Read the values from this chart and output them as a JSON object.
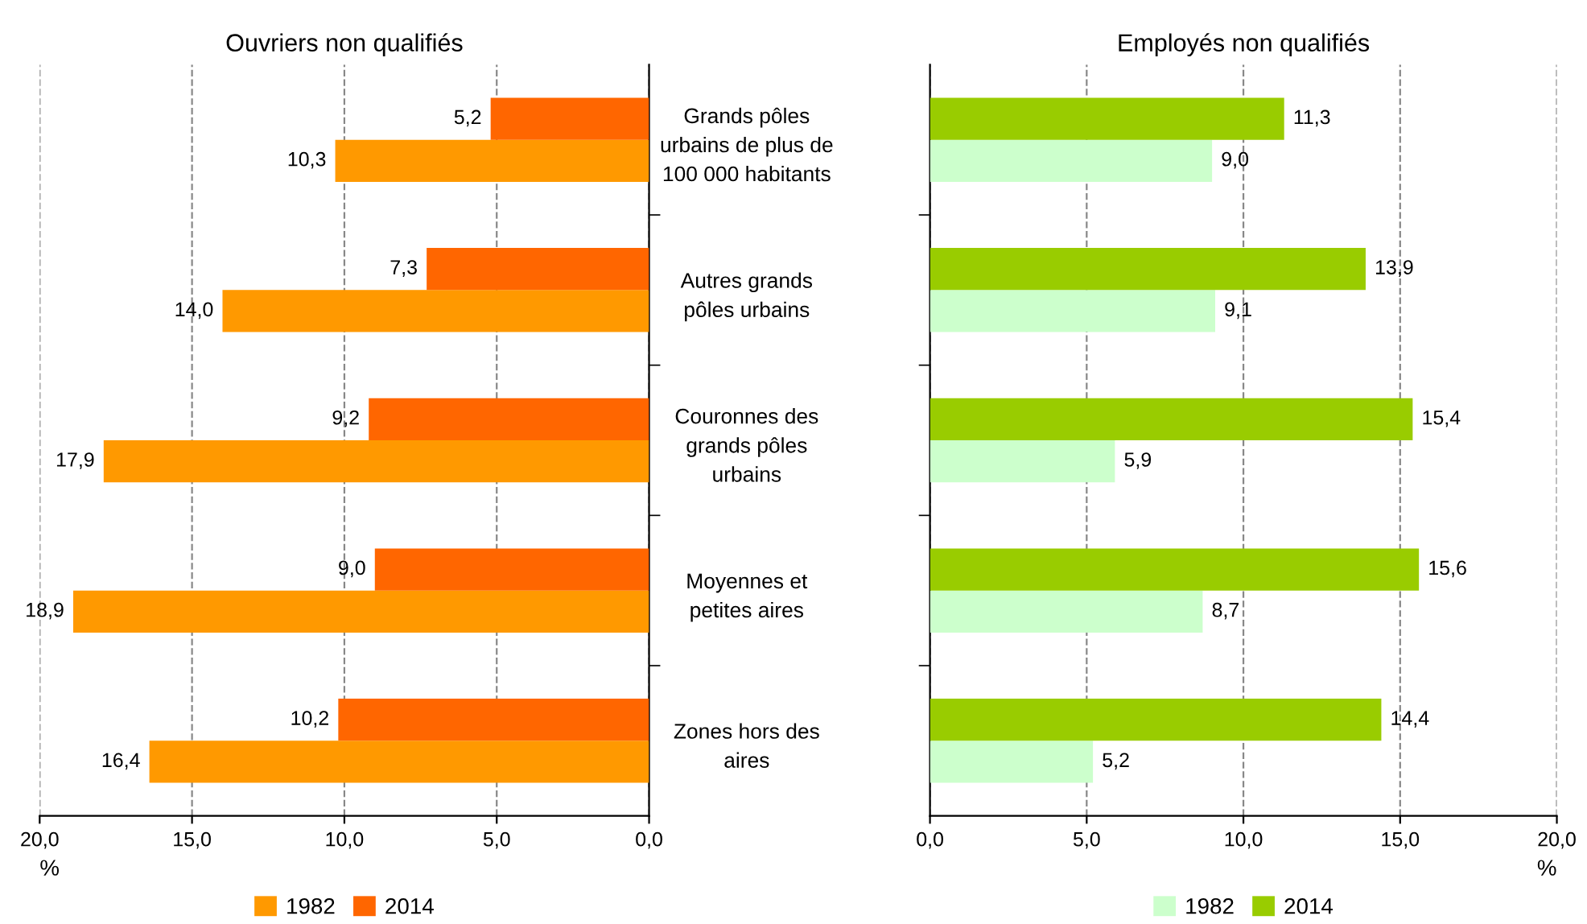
{
  "chart_data": [
    {
      "type": "bar",
      "orientation": "horizontal",
      "title": "Ouvriers non qualifiés",
      "xlabel": "%",
      "categories": [
        null,
        null,
        null,
        null,
        null
      ],
      "series": [
        {
          "name": "1982",
          "color": "#ff9900",
          "values": [
            10.3,
            14.0,
            17.9,
            18.9,
            16.4
          ],
          "value_labels": [
            "10,3",
            "14,0",
            "17,9",
            "18,9",
            "16,4"
          ]
        },
        {
          "name": "2014",
          "color": "#ff6600",
          "values": [
            5.2,
            7.3,
            9.2,
            9.0,
            10.2
          ],
          "value_labels": [
            "5,2",
            "7,3",
            "9,2",
            "9,0",
            "10,2"
          ]
        }
      ],
      "xlim": [
        20,
        0
      ],
      "xticks": [
        {
          "value": 20,
          "label": "20,0"
        },
        {
          "value": 15,
          "label": "15,0"
        },
        {
          "value": 10,
          "label": "10,0"
        },
        {
          "value": 5,
          "label": "5,0"
        },
        {
          "value": 0,
          "label": "0,0"
        }
      ],
      "grid": "x",
      "legend": "bottom",
      "tick_labels": "x"
    },
    {
      "type": "bar",
      "orientation": "horizontal",
      "title": "Employés non qualifiés",
      "xlabel": "%",
      "categories": [
        "Grands pôles\nurbains de plus de\n100 000 habitants",
        "Autres grands\npôles urbains",
        "Couronnes des\ngrands pôles\nurbains",
        "Moyennes et\npetites aires",
        "Zones hors des\naires"
      ],
      "series": [
        {
          "name": "1982",
          "color": "#ccffcc",
          "values": [
            9.0,
            9.1,
            5.9,
            8.7,
            5.2
          ],
          "value_labels": [
            "9,0",
            "9,1",
            "5,9",
            "8,7",
            "5,2"
          ]
        },
        {
          "name": "2014",
          "color": "#99cc00",
          "values": [
            11.3,
            13.9,
            15.4,
            15.6,
            14.4
          ],
          "value_labels": [
            "11,3",
            "13,9",
            "15,4",
            "15,6",
            "14,4"
          ]
        }
      ],
      "xlim": [
        0,
        20
      ],
      "xticks": [
        {
          "value": 0,
          "label": "0,0"
        },
        {
          "value": 5,
          "label": "5,0"
        },
        {
          "value": 10,
          "label": "10,0"
        },
        {
          "value": 15,
          "label": "15,0"
        },
        {
          "value": 20,
          "label": "20,0"
        }
      ],
      "grid": "x",
      "legend": "bottom"
    }
  ]
}
